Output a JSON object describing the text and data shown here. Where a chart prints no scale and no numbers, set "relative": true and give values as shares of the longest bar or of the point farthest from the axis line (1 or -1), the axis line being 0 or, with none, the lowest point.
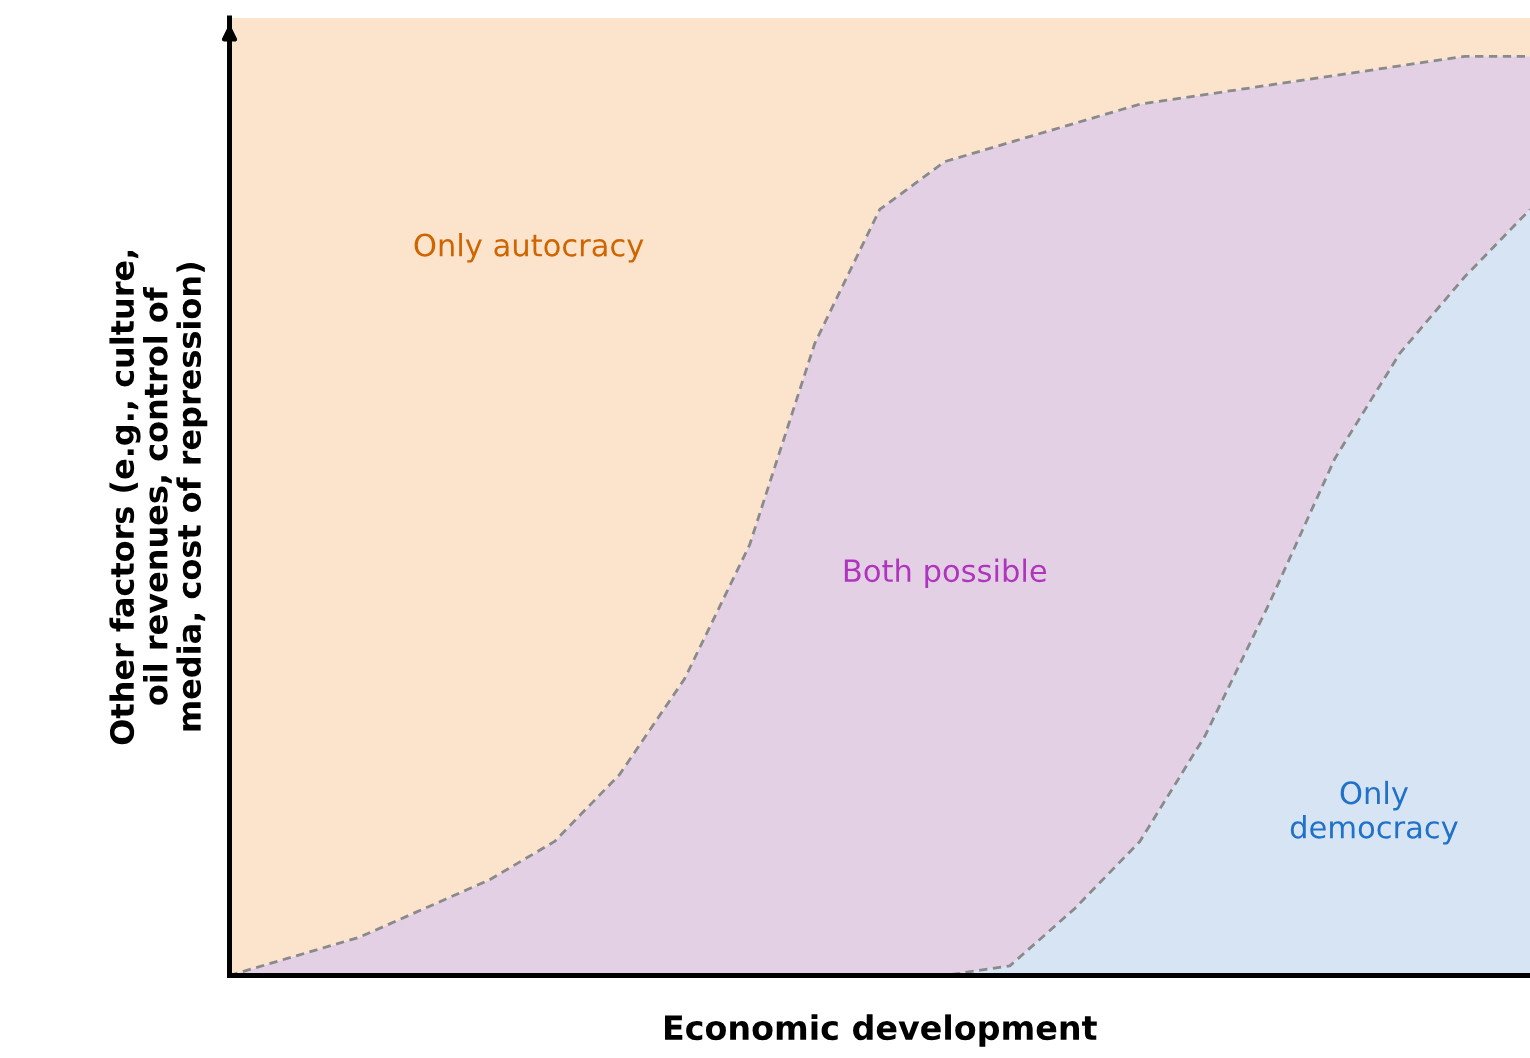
{
  "chart_data": {
    "type": "area",
    "stacked": true,
    "relative": true,
    "line_style": "dashed",
    "xlabel": "Economic development",
    "ylabel": "Other factors (e.g., culture,\noil revenues, control of\nmedia, cost of repression)",
    "categories": [
      null,
      null,
      null,
      null,
      null,
      null,
      null,
      null,
      null,
      null,
      null,
      null,
      null,
      null,
      null,
      null,
      null,
      null,
      null,
      null,
      null
    ],
    "series": [
      {
        "name": "Only\ndemocracy",
        "color": "#d6e4f3",
        "values": [
          0,
          0,
          0,
          0,
          0,
          0,
          0,
          0,
          0,
          0,
          0,
          0,
          0.01,
          0.07,
          0.14,
          0.25,
          0.39,
          0.54,
          0.65,
          0.73,
          0.8
        ]
      },
      {
        "name": "Both possible",
        "color": "#e3d0e5",
        "values": [
          0,
          0.02,
          0.04,
          0.07,
          0.1,
          0.14,
          0.21,
          0.31,
          0.45,
          0.66,
          0.8,
          0.85,
          0.86,
          0.82,
          0.77,
          0.67,
          0.54,
          0.4,
          0.3,
          0.23,
          0.16
        ]
      },
      {
        "name": "Only autocracy",
        "color": "#fbe3cc",
        "values": [
          1,
          0.98,
          0.96,
          0.93,
          0.9,
          0.86,
          0.79,
          0.69,
          0.55,
          0.34,
          0.2,
          0.15,
          0.13,
          0.11,
          0.09,
          0.08,
          0.07,
          0.06,
          0.05,
          0.04,
          0.04
        ]
      }
    ]
  }
}
